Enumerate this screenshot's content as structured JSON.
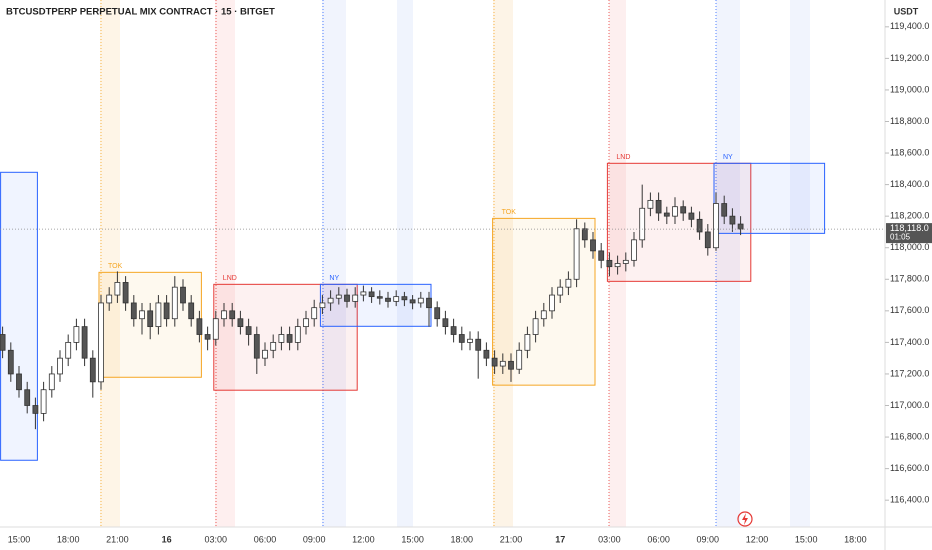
{
  "chart_data": {
    "type": "candlestick",
    "title": "BTCUSDTPERP PERPETUAL MIX CONTRACT · 15 · BITGET",
    "axis_unit": "USDT",
    "categories": [
      null,
      null,
      "15:00",
      null,
      null,
      null,
      null,
      null,
      "18:00",
      null,
      null,
      null,
      null,
      null,
      "21:00",
      null,
      null,
      null,
      null,
      null,
      "16",
      null,
      null,
      null,
      null,
      null,
      "03:00",
      null,
      null,
      null,
      null,
      null,
      "06:00",
      null,
      null,
      null,
      null,
      null,
      "09:00",
      null,
      null,
      null,
      null,
      null,
      "12:00",
      null,
      null,
      null,
      null,
      null,
      "15:00",
      null,
      null,
      null,
      null,
      null,
      "18:00",
      null,
      null,
      null,
      null,
      null,
      "21:00",
      null,
      null,
      null,
      null,
      null,
      "17",
      null,
      null,
      null,
      null,
      null,
      "03:00",
      null,
      null,
      null,
      null,
      null,
      "06:00",
      null,
      null,
      null,
      null,
      null,
      "09:00",
      null,
      null,
      null,
      null,
      null,
      "12:00",
      null,
      null,
      null,
      null,
      null,
      "15:00",
      null,
      null,
      null,
      null,
      null,
      "18:00",
      null,
      null,
      null
    ],
    "open": [
      117450,
      117350,
      117200,
      117100,
      117000,
      116950,
      117100,
      117200,
      117300,
      117400,
      117500,
      117300,
      117150,
      117650,
      117700,
      117780,
      117650,
      117550,
      117600,
      117500,
      117650,
      117550,
      117750,
      117650,
      117550,
      117450,
      117420,
      117550,
      117600,
      117550,
      117500,
      117450,
      117300,
      117350,
      117400,
      117450,
      117400,
      117500,
      117550,
      117620,
      117650,
      117680,
      117700,
      117660,
      117700,
      117720,
      117690,
      117680,
      117660,
      117690,
      117670,
      117650,
      117680,
      117620,
      117550,
      117500,
      117450,
      117400,
      117420,
      117350,
      117300,
      117250,
      117280,
      117230,
      117350,
      117450,
      117550,
      117600,
      117700,
      117750,
      117800,
      118120,
      118050,
      117980,
      117920,
      117880,
      117900,
      117920,
      118050,
      118250,
      118300,
      118220,
      118200,
      118260,
      118220,
      118180,
      118100,
      118000,
      118280,
      118200,
      118150,
      null,
      null,
      null,
      null,
      null,
      null,
      null,
      null,
      null,
      null,
      null,
      null,
      null,
      null,
      null,
      null,
      null
    ],
    "high": [
      117500,
      117400,
      117250,
      117150,
      117050,
      117150,
      117250,
      117350,
      117450,
      117550,
      117550,
      117350,
      117700,
      117750,
      117850,
      117820,
      117700,
      117650,
      117650,
      117700,
      117700,
      117820,
      117800,
      117700,
      117600,
      117500,
      117600,
      117650,
      117650,
      117600,
      117550,
      117500,
      117400,
      117450,
      117500,
      117500,
      117550,
      117600,
      117670,
      117700,
      117730,
      117750,
      117740,
      117750,
      117760,
      117750,
      117730,
      117720,
      117730,
      117720,
      117700,
      117720,
      117720,
      117660,
      117600,
      117550,
      117500,
      117470,
      117470,
      117400,
      117350,
      117330,
      117330,
      117400,
      117500,
      117600,
      117650,
      117750,
      117800,
      117850,
      118180,
      118160,
      118100,
      118030,
      117970,
      117950,
      117970,
      118100,
      118400,
      118350,
      118350,
      118260,
      118320,
      118300,
      118260,
      118230,
      118150,
      118350,
      118330,
      118250,
      118200,
      null,
      null,
      null,
      null,
      null,
      null,
      null,
      null,
      null,
      null,
      null,
      null,
      null,
      null,
      null,
      null,
      null
    ],
    "low": [
      117300,
      117150,
      117050,
      116950,
      116850,
      116900,
      117050,
      117150,
      117250,
      117350,
      117250,
      117050,
      117100,
      117600,
      117650,
      117600,
      117500,
      117450,
      117420,
      117450,
      117500,
      117500,
      117600,
      117500,
      117400,
      117350,
      117380,
      117500,
      117500,
      117450,
      117380,
      117200,
      117250,
      117300,
      117350,
      117350,
      117350,
      117450,
      117500,
      117580,
      117600,
      117640,
      117620,
      117620,
      117660,
      117650,
      117640,
      117620,
      117630,
      117630,
      117610,
      117620,
      117500,
      117500,
      117450,
      117400,
      117350,
      117350,
      117170,
      117250,
      117200,
      117200,
      117150,
      117200,
      117300,
      117400,
      117500,
      117550,
      117650,
      117700,
      117750,
      118000,
      117930,
      117870,
      117820,
      117830,
      117850,
      117880,
      118000,
      118200,
      118170,
      118150,
      118150,
      118170,
      118130,
      118050,
      117950,
      117980,
      118150,
      118100,
      118080,
      null,
      null,
      null,
      null,
      null,
      null,
      null,
      null,
      null,
      null,
      null,
      null,
      null,
      null,
      null,
      null,
      null
    ],
    "close": [
      117350,
      117200,
      117100,
      117000,
      116950,
      117100,
      117200,
      117300,
      117400,
      117500,
      117300,
      117150,
      117650,
      117700,
      117780,
      117650,
      117550,
      117600,
      117500,
      117650,
      117550,
      117750,
      117650,
      117550,
      117450,
      117420,
      117550,
      117600,
      117550,
      117500,
      117450,
      117300,
      117350,
      117400,
      117450,
      117400,
      117500,
      117550,
      117620,
      117650,
      117680,
      117700,
      117660,
      117700,
      117720,
      117690,
      117680,
      117660,
      117690,
      117670,
      117650,
      117680,
      117620,
      117550,
      117500,
      117450,
      117400,
      117420,
      117350,
      117300,
      117250,
      117280,
      117230,
      117350,
      117450,
      117550,
      117600,
      117700,
      117750,
      117800,
      118120,
      118050,
      117980,
      117920,
      117880,
      117900,
      117920,
      118050,
      118250,
      118300,
      118220,
      118200,
      118260,
      118220,
      118180,
      118100,
      118000,
      118280,
      118200,
      118150,
      118118,
      null,
      null,
      null,
      null,
      null,
      null,
      null,
      null,
      null,
      null,
      null,
      null,
      null,
      null,
      null,
      null,
      null
    ],
    "up_color": "#ffffff",
    "down_color": "#555555",
    "last_price_label": "118,118.0",
    "countdown": "01:05",
    "sessions": [
      {
        "high": 118478,
        "low": 116653,
        "start": 0,
        "end": 4,
        "color": "#2962ff"
      },
      {
        "label": "TOK",
        "high": 117844,
        "low": 117179,
        "start": 12,
        "end": 24,
        "color": "#f5a623"
      },
      {
        "label": "LND",
        "high": 117768,
        "low": 117097,
        "start": 26,
        "end": 43,
        "color": "#e53935"
      },
      {
        "label": "NY",
        "high": 117768,
        "low": 117502,
        "start": 39,
        "end": 52,
        "color": "#2962ff"
      },
      {
        "label": "TOK",
        "high": 118186,
        "low": 117129,
        "start": 60,
        "end": 72,
        "color": "#f5a623"
      },
      {
        "label": "LND",
        "high": 118535,
        "low": 117787,
        "start": 74,
        "end": 91,
        "color": "#e53935"
      },
      {
        "label": "NY",
        "high": 118535,
        "low": 118091,
        "start": 87,
        "end": 100,
        "color": "#2962ff"
      }
    ],
    "ylim": [
      116230,
      119570
    ],
    "yticks": [
      {
        "value": 116400,
        "label": "116,400.0"
      },
      {
        "value": 116600,
        "label": "116,600.0"
      },
      {
        "value": 116800,
        "label": "116,800.0"
      },
      {
        "value": 117000,
        "label": "117,000.0"
      },
      {
        "value": 117200,
        "label": "117,200.0"
      },
      {
        "value": 117400,
        "label": "117,400.0"
      },
      {
        "value": 117600,
        "label": "117,600.0"
      },
      {
        "value": 117800,
        "label": "117,800.0"
      },
      {
        "value": 118000,
        "label": "118,000.0"
      },
      {
        "value": 118200,
        "label": "118,200.0"
      },
      {
        "value": 118400,
        "label": "118,400.0"
      },
      {
        "value": 118600,
        "label": "118,600.0"
      },
      {
        "value": 118800,
        "label": "118,800.0"
      },
      {
        "value": 119000,
        "label": "119,000.0"
      },
      {
        "value": 119200,
        "label": "119,200.0"
      },
      {
        "value": 119400,
        "label": "119,400.0"
      }
    ]
  }
}
